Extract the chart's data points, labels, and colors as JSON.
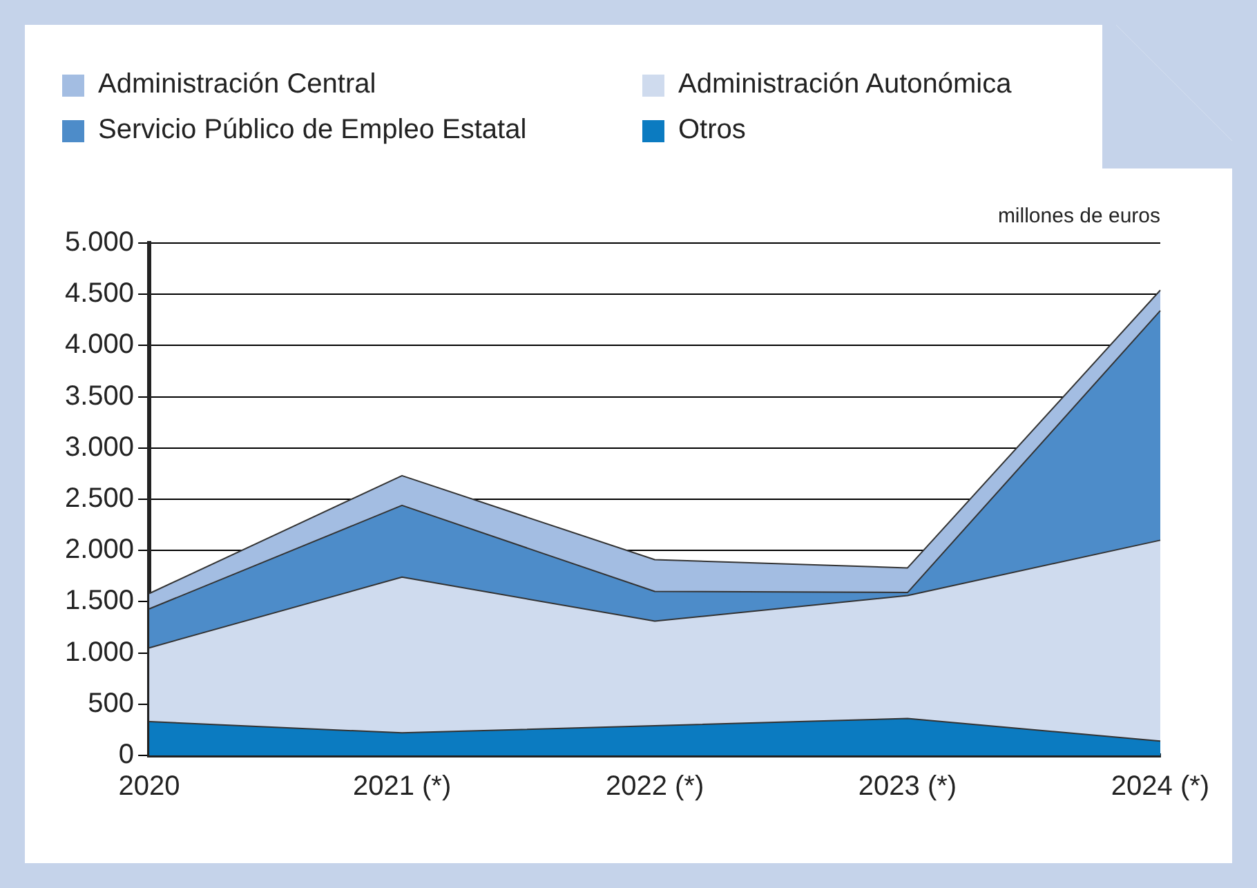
{
  "chart_data": {
    "type": "area",
    "stacked": true,
    "ylabel": "millones de euros",
    "categories": [
      "2020",
      "2021 (*)",
      "2022 (*)",
      "2023 (*)",
      "2024 (*)"
    ],
    "series": [
      {
        "name": "Otros",
        "color": "#0b7bc1",
        "values": [
          330,
          220,
          290,
          360,
          140
        ]
      },
      {
        "name": "Administración Autonómica",
        "color": "#cfdbee",
        "values": [
          720,
          1520,
          1020,
          1200,
          1960
        ]
      },
      {
        "name": "Servicio Público de Empleo Estatal",
        "color": "#4d8cc9",
        "values": [
          380,
          700,
          290,
          30,
          2240
        ]
      },
      {
        "name": "Administración Central",
        "color": "#a3bde2",
        "values": [
          150,
          290,
          310,
          240,
          200
        ]
      }
    ],
    "ylim": [
      0,
      5000
    ],
    "yticks": [
      0,
      500,
      {
        "value": 1000,
        "label": "1.000"
      },
      {
        "value": 1500,
        "label": "1.500"
      },
      {
        "value": 2000,
        "label": "2.000"
      },
      {
        "value": 2500,
        "label": "2.500"
      },
      {
        "value": 3000,
        "label": "3.000"
      },
      {
        "value": 3500,
        "label": "3.500"
      },
      {
        "value": 4000,
        "label": "4.000"
      },
      {
        "value": 4500,
        "label": "4.500"
      },
      {
        "value": 5000,
        "label": "5.000"
      }
    ],
    "grid": "y",
    "legend": "top left"
  }
}
